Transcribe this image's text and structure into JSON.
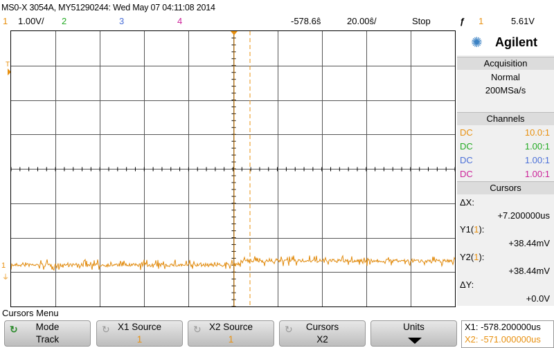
{
  "title": "MS0-X 3054A, MY51290244: Wed May 07 04:11:08 2014",
  "status": {
    "ch1_num": "1",
    "ch1_scale": "1.00V/",
    "ch2_num": "2",
    "ch3_num": "3",
    "ch4_num": "4",
    "time_offset": "-578.6ŝ",
    "time_scale": "20.00ŝ/",
    "run_state": "Stop",
    "trigger_icon": "ƒ",
    "trigger_channel": "1",
    "trigger_level": "5.61V"
  },
  "colors": {
    "ch1": "#e8900f",
    "ch2": "#22aa22",
    "ch3": "#4a6fd8",
    "ch4": "#cc2299",
    "trace": "#e18a0c",
    "grid": "#000000"
  },
  "markers": {
    "ch1_ground": "1",
    "trigger_level_marker": "T"
  },
  "panel": {
    "brand": "Agilent",
    "acquisition_header": "Acquisition",
    "acq_mode": "Normal",
    "acq_rate": "200MSa/s",
    "channels_header": "Channels",
    "channels": [
      {
        "coupling": "DC",
        "probe": "10.0:1"
      },
      {
        "coupling": "DC",
        "probe": "1.00:1"
      },
      {
        "coupling": "DC",
        "probe": "1.00:1"
      },
      {
        "coupling": "DC",
        "probe": "1.00:1"
      }
    ],
    "cursors_header": "Cursors",
    "dx_label": "ΔX:",
    "dx_value": "+7.200000us",
    "y1_label": "Y1(",
    "y1_ch": "1",
    "y1_close": "):",
    "y1_value": "+38.44mV",
    "y2_label": "Y2(",
    "y2_ch": "1",
    "y2_close": "):",
    "y2_value": "+38.44mV",
    "dy_label": "ΔY:",
    "dy_value": "+0.0V"
  },
  "menu": {
    "title": "Cursors Menu",
    "mode_label": "Mode",
    "mode_value": "Track",
    "x1_label": "X1 Source",
    "x1_value": "1",
    "x2_label": "X2 Source",
    "x2_value": "1",
    "cursors_label": "Cursors",
    "cursors_value": "X2",
    "units_label": "Units"
  },
  "readout": {
    "x1_text": "X1: -578.200000us",
    "x2_text": "X2: -571.000000us"
  }
}
